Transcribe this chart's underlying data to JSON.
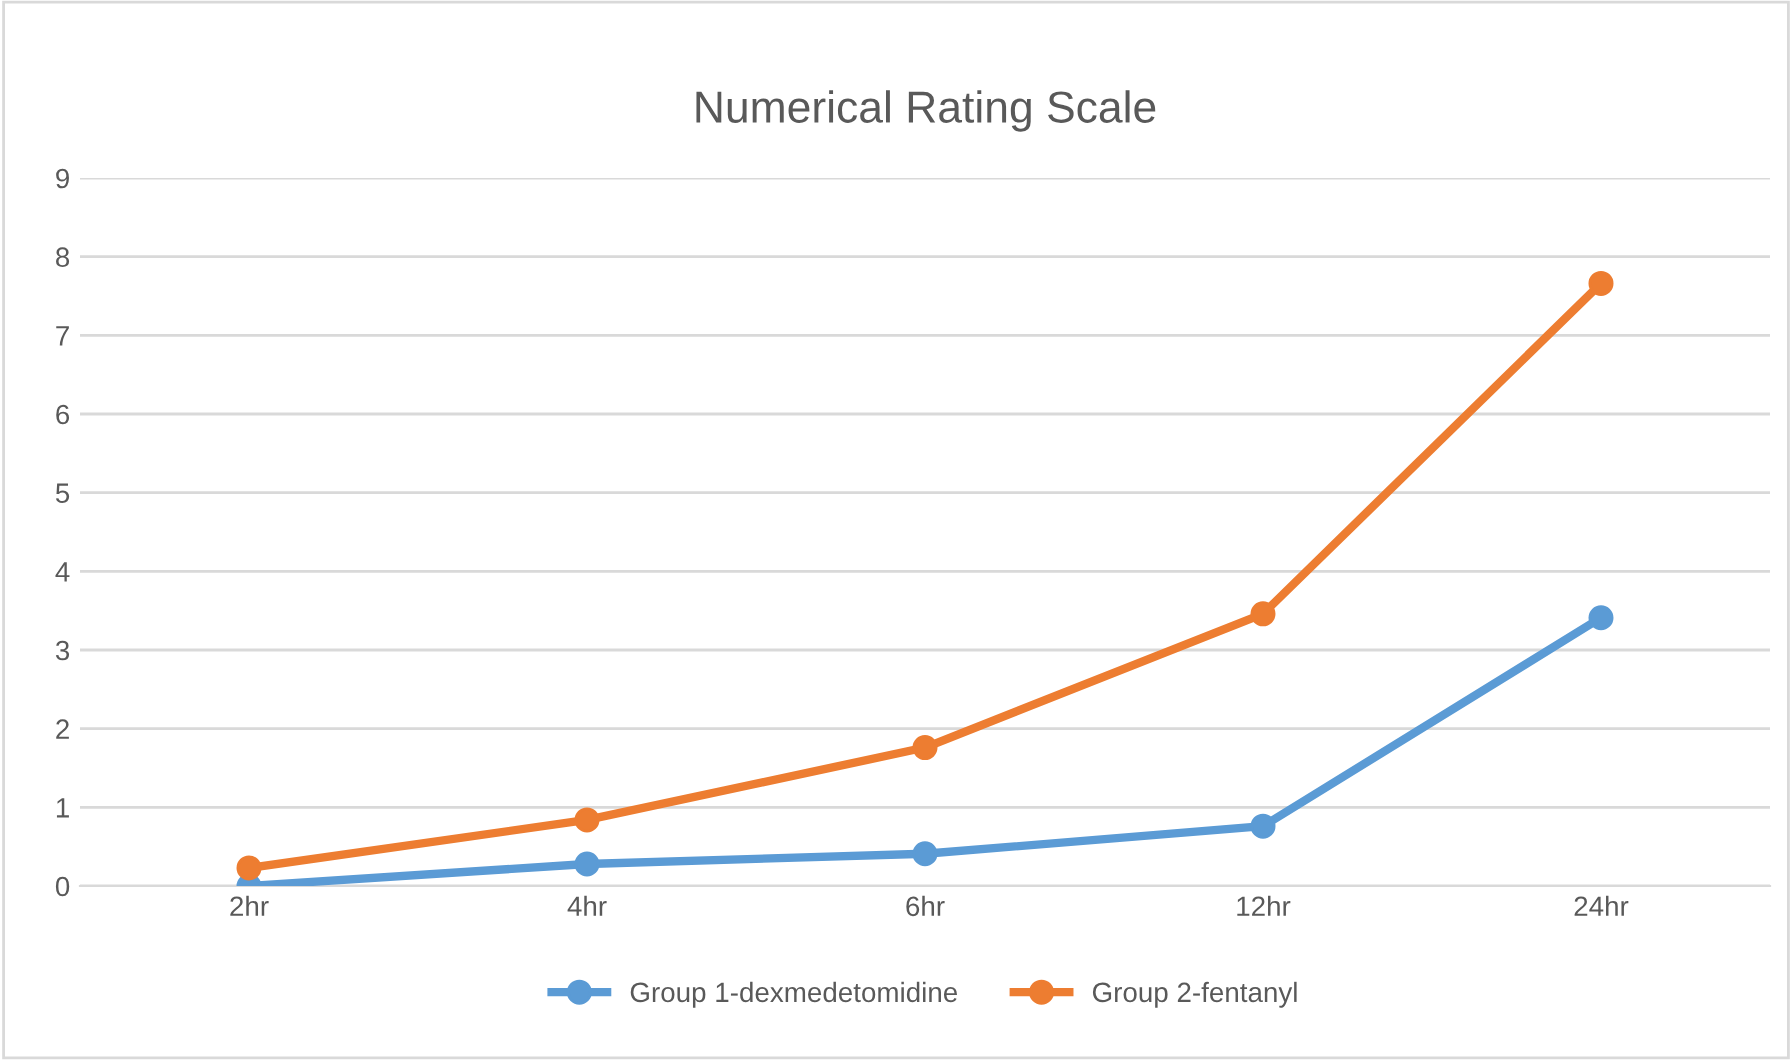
{
  "chart_data": {
    "type": "line",
    "title": "Numerical Rating Scale",
    "categories": [
      "2hr",
      "4hr",
      "6hr",
      "12hr",
      "24hr"
    ],
    "series": [
      {
        "name": "Group 1-dexmedetomidine",
        "color": "#5b9bd5",
        "values": [
          0.0,
          0.28,
          0.41,
          0.76,
          3.41
        ]
      },
      {
        "name": "Group 2-fentanyl",
        "color": "#ed7d31",
        "values": [
          0.23,
          0.84,
          1.76,
          3.46,
          7.66
        ]
      }
    ],
    "ylim": [
      0,
      9
    ],
    "yticks": [
      0,
      1,
      2,
      3,
      4,
      5,
      6,
      7,
      8,
      9
    ],
    "grid": "y",
    "legend": "bottom",
    "marker": "circle",
    "line_style": "solid"
  }
}
